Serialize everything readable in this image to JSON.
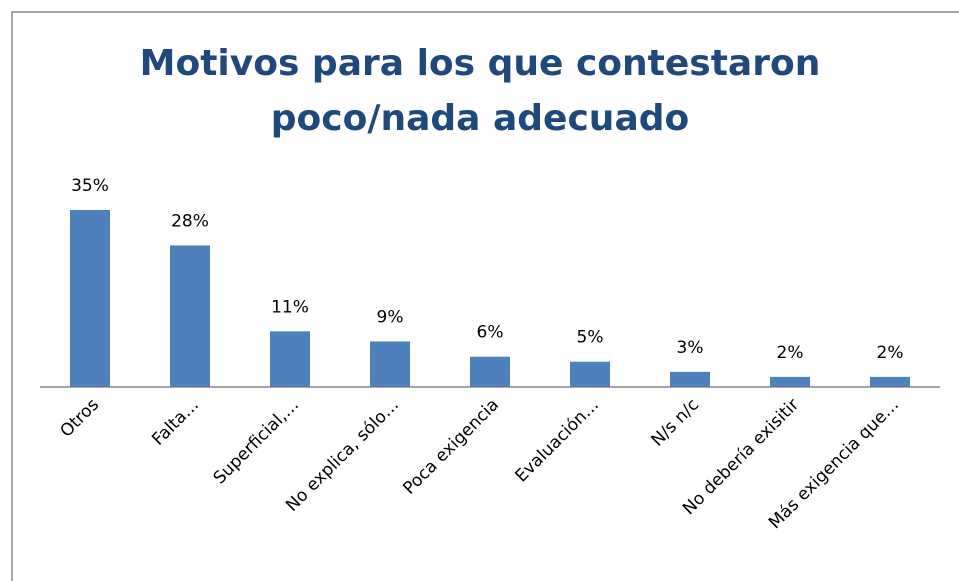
{
  "chart_data": {
    "type": "bar",
    "title": [
      "Motivos para los que contestaron",
      "poco/nada adecuado"
    ],
    "categories": [
      "Otros",
      "Falta…",
      "Superficial,…",
      "No explica, sólo…",
      "Poca exigencia",
      "Evaluación…",
      "N/s n/c",
      "No debería exisitir",
      "Más exigencia que…"
    ],
    "values": [
      35,
      28,
      11,
      9,
      6,
      5,
      3,
      2,
      2
    ],
    "value_labels": [
      "35%",
      "28%",
      "11%",
      "9%",
      "6%",
      "5%",
      "3%",
      "2%",
      "2%"
    ],
    "color": "#4f81bd"
  }
}
